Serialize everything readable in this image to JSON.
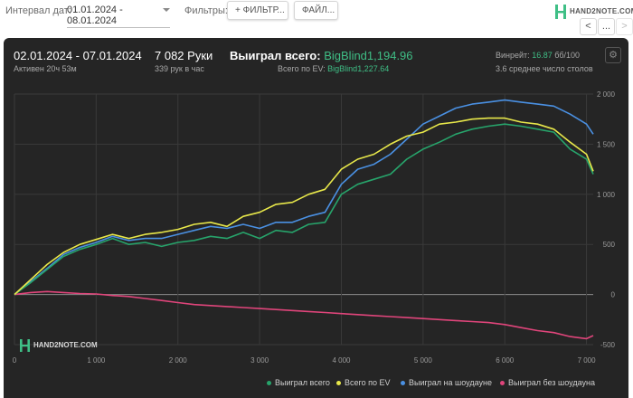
{
  "toolbar": {
    "date_label": "Интервал дат:",
    "date_value": "01.01.2024 - 08.01.2024",
    "filters_label": "Фильтры:",
    "filter_button": "+ ФИЛЬТР...",
    "files_button": "ФАЙЛ...",
    "logo_text": "HAND2NOTE.COM",
    "nav_prev": "<",
    "nav_more": "...",
    "nav_next": ">"
  },
  "summary": {
    "period": "02.01.2024 - 07.01.2024",
    "active": "Активен 20ч 53м",
    "hands": "7 082 Руки",
    "hands_per_hour": "339 рук в час",
    "won_label": "Выиграл всего:",
    "won_value": "BigBlind1,194.96",
    "ev_label": "Всего по EV:",
    "ev_value": "BigBlind1,227.64",
    "winrate_label": "Винрейт:",
    "winrate_value": "16.87",
    "winrate_unit": "бб/100",
    "tables": "3.6 среднее число столов"
  },
  "watermark": "HAND2NOTE.COM",
  "colors": {
    "panel_bg": "#252525",
    "green": "#3fbf86",
    "won": "#27a46b",
    "ev": "#e8e84a",
    "showdown": "#4a90e2",
    "nonshowdown": "#e0457b"
  },
  "icons": [
    "settings-gear-icon",
    "hand2note-logo-icon",
    "chevron-left-icon",
    "chevron-right-icon",
    "plus-icon",
    "caret-down-icon"
  ],
  "chart_data": {
    "type": "line",
    "xlim": [
      0,
      7082
    ],
    "ylim": [
      -500,
      2000
    ],
    "xticks": [
      0,
      1000,
      2000,
      3000,
      4000,
      5000,
      6000,
      7000
    ],
    "xtick_labels": [
      "0",
      "1 000",
      "2 000",
      "3 000",
      "4 000",
      "5 000",
      "6 000",
      "7 000"
    ],
    "yticks": [
      -500,
      0,
      500,
      1000,
      1500,
      2000
    ],
    "ytick_labels": [
      "-500",
      "0",
      "500",
      "1 000",
      "1 500",
      "2 000"
    ],
    "grid": true,
    "legend_position": "bottom-right",
    "series": [
      {
        "name": "Выиграл всего",
        "color": "#27a46b",
        "x": [
          0,
          200,
          400,
          600,
          800,
          1000,
          1200,
          1400,
          1600,
          1800,
          2000,
          2200,
          2400,
          2600,
          2800,
          3000,
          3200,
          3400,
          3600,
          3800,
          4000,
          4200,
          4400,
          4600,
          4800,
          5000,
          5200,
          5400,
          5600,
          5800,
          6000,
          6200,
          6400,
          6600,
          6800,
          7000,
          7082
        ],
        "y": [
          0,
          120,
          250,
          380,
          450,
          500,
          560,
          500,
          520,
          480,
          520,
          540,
          580,
          560,
          620,
          560,
          640,
          620,
          700,
          720,
          1000,
          1100,
          1150,
          1200,
          1350,
          1450,
          1520,
          1600,
          1650,
          1680,
          1700,
          1680,
          1650,
          1620,
          1450,
          1350,
          1200
        ]
      },
      {
        "name": "Всего по EV",
        "color": "#e8e84a",
        "x": [
          0,
          200,
          400,
          600,
          800,
          1000,
          1200,
          1400,
          1600,
          1800,
          2000,
          2200,
          2400,
          2600,
          2800,
          3000,
          3200,
          3400,
          3600,
          3800,
          4000,
          4200,
          4400,
          4600,
          4800,
          5000,
          5200,
          5400,
          5600,
          5800,
          6000,
          6200,
          6400,
          6600,
          6800,
          7000,
          7082
        ],
        "y": [
          0,
          150,
          300,
          420,
          500,
          550,
          600,
          560,
          600,
          620,
          650,
          700,
          720,
          680,
          780,
          820,
          900,
          920,
          1000,
          1050,
          1250,
          1350,
          1400,
          1500,
          1580,
          1620,
          1700,
          1720,
          1750,
          1760,
          1760,
          1720,
          1700,
          1650,
          1520,
          1400,
          1230
        ]
      },
      {
        "name": "Выиграл на шоудауне",
        "color": "#4a90e2",
        "x": [
          0,
          200,
          400,
          600,
          800,
          1000,
          1200,
          1400,
          1600,
          1800,
          2000,
          2200,
          2400,
          2600,
          2800,
          3000,
          3200,
          3400,
          3600,
          3800,
          4000,
          4200,
          4400,
          4600,
          4800,
          5000,
          5200,
          5400,
          5600,
          5800,
          6000,
          6200,
          6400,
          6600,
          6800,
          7000,
          7082
        ],
        "y": [
          0,
          130,
          260,
          400,
          470,
          520,
          580,
          540,
          560,
          560,
          600,
          640,
          680,
          660,
          700,
          660,
          720,
          720,
          780,
          820,
          1100,
          1250,
          1300,
          1400,
          1550,
          1700,
          1780,
          1860,
          1900,
          1920,
          1940,
          1920,
          1900,
          1880,
          1800,
          1700,
          1600
        ]
      },
      {
        "name": "Выиграл без шоудауна",
        "color": "#e0457b",
        "x": [
          0,
          200,
          400,
          600,
          800,
          1000,
          1200,
          1400,
          1600,
          1800,
          2000,
          2200,
          2400,
          2600,
          2800,
          3000,
          3200,
          3400,
          3600,
          3800,
          4000,
          4200,
          4400,
          4600,
          4800,
          5000,
          5200,
          5400,
          5600,
          5800,
          6000,
          6200,
          6400,
          6600,
          6800,
          7000,
          7082
        ],
        "y": [
          0,
          20,
          30,
          20,
          10,
          5,
          -10,
          -20,
          -40,
          -60,
          -80,
          -100,
          -110,
          -120,
          -130,
          -140,
          -150,
          -160,
          -170,
          -180,
          -190,
          -200,
          -210,
          -220,
          -230,
          -240,
          -250,
          -260,
          -270,
          -280,
          -300,
          -330,
          -360,
          -380,
          -420,
          -440,
          -410
        ]
      }
    ]
  }
}
